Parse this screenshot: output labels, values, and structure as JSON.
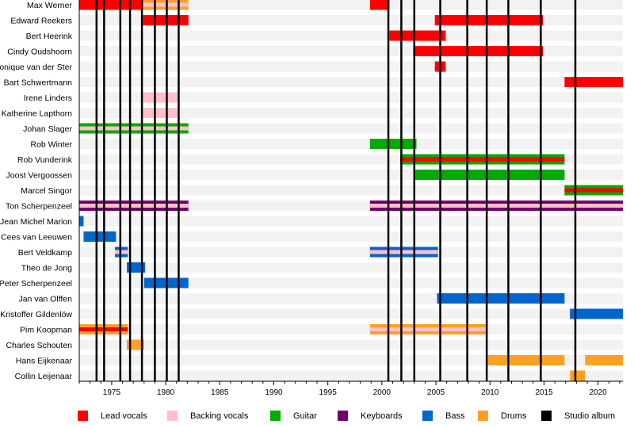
{
  "chart_data": {
    "type": "timeline",
    "title": "",
    "xlabel": "",
    "ylabel": "",
    "xlim": [
      1972.0,
      2022.3
    ],
    "x_ticks": [
      1975,
      1980,
      1985,
      1990,
      1995,
      2000,
      2005,
      2010,
      2015,
      2020
    ],
    "colors": {
      "lead_vocals": "#ff0000",
      "backing_vocals": "#ffc0cb",
      "guitar": "#00aa00",
      "keyboards": "#6e0070",
      "bass": "#0066cc",
      "drums": "#ffa024",
      "studio_album": "#000000",
      "row_stripe": "#f2f2f2"
    },
    "members": [
      {
        "name": "Max Werner",
        "bars": [
          {
            "start": 1972.0,
            "end": 1977.9,
            "role": "lead_vocals"
          },
          {
            "start": 1977.9,
            "end": 1982.1,
            "role": "drums",
            "stripe": "backing_vocals"
          },
          {
            "start": 1998.9,
            "end": 2000.7,
            "role": "lead_vocals"
          }
        ]
      },
      {
        "name": "Edward Reekers",
        "bars": [
          {
            "start": 1977.9,
            "end": 1982.1,
            "role": "lead_vocals"
          },
          {
            "start": 2004.9,
            "end": 2014.9,
            "role": "lead_vocals"
          }
        ]
      },
      {
        "name": "Bert Heerink",
        "bars": [
          {
            "start": 2000.7,
            "end": 2005.9,
            "role": "lead_vocals"
          }
        ]
      },
      {
        "name": "Cindy Oudshoorn",
        "bars": [
          {
            "start": 2002.9,
            "end": 2014.9,
            "role": "lead_vocals"
          }
        ]
      },
      {
        "name": "Monique van der Ster",
        "bars": [
          {
            "start": 2004.9,
            "end": 2005.9,
            "role": "lead_vocals"
          }
        ]
      },
      {
        "name": "Bart Schwertmann",
        "bars": [
          {
            "start": 2016.9,
            "end": 2022.3,
            "role": "lead_vocals"
          }
        ]
      },
      {
        "name": "Irene Linders",
        "bars": [
          {
            "start": 1977.9,
            "end": 1981.2,
            "role": "backing_vocals"
          }
        ]
      },
      {
        "name": "Katherine Lapthorn",
        "bars": [
          {
            "start": 1977.9,
            "end": 1981.2,
            "role": "backing_vocals"
          }
        ]
      },
      {
        "name": "Johan Slager",
        "bars": [
          {
            "start": 1972.0,
            "end": 1982.1,
            "role": "guitar",
            "stripe": "backing_vocals"
          }
        ]
      },
      {
        "name": "Rob Winter",
        "bars": [
          {
            "start": 1998.9,
            "end": 2003.2,
            "role": "guitar"
          }
        ]
      },
      {
        "name": "Rob Vunderink",
        "bars": [
          {
            "start": 2001.7,
            "end": 2016.9,
            "role": "guitar",
            "stripe": "lead_vocals"
          }
        ]
      },
      {
        "name": "Joost Vergoossen",
        "bars": [
          {
            "start": 2003.1,
            "end": 2016.9,
            "role": "guitar"
          }
        ]
      },
      {
        "name": "Marcel Singor",
        "bars": [
          {
            "start": 2016.9,
            "end": 2022.3,
            "role": "guitar",
            "stripe": "lead_vocals"
          }
        ]
      },
      {
        "name": "Ton Scherpenzeel",
        "bars": [
          {
            "start": 1972.0,
            "end": 1982.1,
            "role": "keyboards",
            "stripe": "backing_vocals"
          },
          {
            "start": 1998.9,
            "end": 2022.3,
            "role": "keyboards",
            "stripe": "backing_vocals"
          }
        ]
      },
      {
        "name": "Jean Michel Marion",
        "bars": [
          {
            "start": 1972.0,
            "end": 1972.4,
            "role": "bass"
          }
        ]
      },
      {
        "name": "Cees van Leeuwen",
        "bars": [
          {
            "start": 1972.4,
            "end": 1975.4,
            "role": "bass"
          }
        ]
      },
      {
        "name": "Bert Veldkamp",
        "bars": [
          {
            "start": 1975.3,
            "end": 1976.5,
            "role": "bass",
            "stripe": "backing_vocals"
          },
          {
            "start": 1998.9,
            "end": 2005.2,
            "role": "bass",
            "stripe": "backing_vocals"
          }
        ]
      },
      {
        "name": "Theo de Jong",
        "bars": [
          {
            "start": 1976.4,
            "end": 1978.1,
            "role": "bass"
          }
        ]
      },
      {
        "name": "Peter Scherpenzeel",
        "bars": [
          {
            "start": 1978.0,
            "end": 1982.1,
            "role": "bass"
          }
        ]
      },
      {
        "name": "Jan van Olffen",
        "bars": [
          {
            "start": 2005.1,
            "end": 2016.9,
            "role": "bass"
          }
        ]
      },
      {
        "name": "Kristoffer Gildenlöw",
        "bars": [
          {
            "start": 2017.4,
            "end": 2022.3,
            "role": "bass"
          }
        ]
      },
      {
        "name": "Pim Koopman",
        "bars": [
          {
            "start": 1972.0,
            "end": 1976.5,
            "role": "drums",
            "stripe": "lead_vocals"
          },
          {
            "start": 1998.9,
            "end": 2009.8,
            "role": "drums",
            "stripe": "backing_vocals"
          }
        ]
      },
      {
        "name": "Charles Schouten",
        "bars": [
          {
            "start": 1976.4,
            "end": 1978.0,
            "role": "drums"
          }
        ]
      },
      {
        "name": "Hans Eijkenaar",
        "bars": [
          {
            "start": 2009.8,
            "end": 2016.9,
            "role": "drums"
          },
          {
            "start": 2018.8,
            "end": 2022.3,
            "role": "drums"
          }
        ]
      },
      {
        "name": "Collin Leijenaar",
        "bars": [
          {
            "start": 2017.4,
            "end": 2018.8,
            "role": "drums"
          }
        ]
      }
    ],
    "studio_albums": [
      1973.6,
      1974.3,
      1975.8,
      1976.7,
      1977.8,
      1979.0,
      1980.1,
      1981.2,
      2000.6,
      2001.8,
      2003.0,
      2005.4,
      2007.9,
      2009.7,
      2011.7,
      2014.7,
      2017.9
    ],
    "legend": [
      {
        "key": "lead_vocals",
        "label": "Lead vocals"
      },
      {
        "key": "backing_vocals",
        "label": "Backing vocals"
      },
      {
        "key": "guitar",
        "label": "Guitar"
      },
      {
        "key": "keyboards",
        "label": "Keyboards"
      },
      {
        "key": "bass",
        "label": "Bass"
      },
      {
        "key": "drums",
        "label": "Drums"
      },
      {
        "key": "studio_album",
        "label": "Studio album"
      }
    ],
    "legend_position": "bottom"
  }
}
